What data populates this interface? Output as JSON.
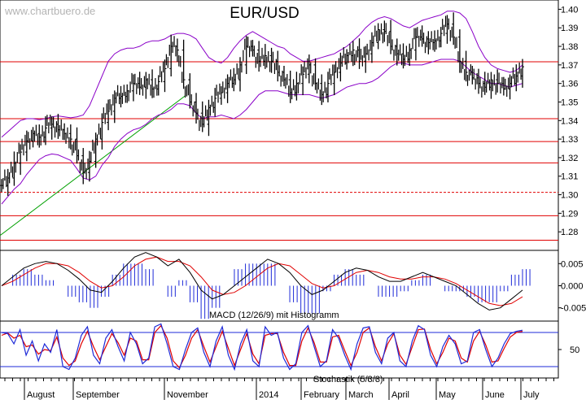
{
  "watermark": "www.chartbuero.de",
  "chart_data": [
    {
      "type": "candlestick",
      "title": "EUR/USD",
      "ylim": [
        1.27,
        1.405
      ],
      "y_ticks": [
        "1.28",
        "1.29",
        "1.30",
        "1.31",
        "1.32",
        "1.33",
        "1.34",
        "1.35",
        "1.36",
        "1.37",
        "1.38",
        "1.39",
        "1.40"
      ],
      "x_labels": [
        "August",
        "September",
        "November",
        "2014",
        "February",
        "March",
        "April",
        "May",
        "June",
        "July"
      ],
      "horizontal_lines": [
        {
          "y": 1.3717,
          "style": "solid"
        },
        {
          "y": 1.341,
          "style": "solid"
        },
        {
          "y": 1.3287,
          "style": "solid"
        },
        {
          "y": 1.3172,
          "style": "solid"
        },
        {
          "y": 1.3013,
          "style": "dashed"
        },
        {
          "y": 1.2887,
          "style": "solid"
        },
        {
          "y": 1.2755,
          "style": "solid"
        }
      ],
      "trendline": {
        "from": 1.278,
        "to": 1.3535,
        "color": "#00a000"
      },
      "close": [
        1.305,
        1.309,
        1.317,
        1.323,
        1.329,
        1.333,
        1.331,
        1.336,
        1.338,
        1.335,
        1.333,
        1.33,
        1.321,
        1.312,
        1.318,
        1.33,
        1.339,
        1.345,
        1.352,
        1.353,
        1.356,
        1.36,
        1.358,
        1.362,
        1.357,
        1.361,
        1.368,
        1.38,
        1.378,
        1.362,
        1.35,
        1.344,
        1.338,
        1.347,
        1.352,
        1.355,
        1.36,
        1.362,
        1.37,
        1.38,
        1.378,
        1.372,
        1.375,
        1.372,
        1.366,
        1.362,
        1.355,
        1.36,
        1.365,
        1.37,
        1.36,
        1.354,
        1.36,
        1.366,
        1.371,
        1.375,
        1.378,
        1.372,
        1.376,
        1.382,
        1.389,
        1.388,
        1.38,
        1.376,
        1.373,
        1.378,
        1.385,
        1.384,
        1.382,
        1.383,
        1.387,
        1.392,
        1.385,
        1.372,
        1.366,
        1.363,
        1.36,
        1.358,
        1.362,
        1.36,
        1.357,
        1.36,
        1.364,
        1.369
      ],
      "bollinger_upper": [
        1.331,
        1.334,
        1.337,
        1.34,
        1.341,
        1.341,
        1.3405,
        1.341,
        1.342,
        1.3425,
        1.342,
        1.3415,
        1.342,
        1.343,
        1.348,
        1.356,
        1.364,
        1.372,
        1.376,
        1.378,
        1.379,
        1.379,
        1.38,
        1.382,
        1.383,
        1.383,
        1.384,
        1.386,
        1.387,
        1.387,
        1.386,
        1.384,
        1.379,
        1.374,
        1.372,
        1.371,
        1.374,
        1.379,
        1.383,
        1.386,
        1.388,
        1.386,
        1.384,
        1.382,
        1.38,
        1.379,
        1.376,
        1.374,
        1.372,
        1.372,
        1.373,
        1.374,
        1.375,
        1.376,
        1.378,
        1.38,
        1.383,
        1.386,
        1.39,
        1.393,
        1.395,
        1.396,
        1.395,
        1.393,
        1.391,
        1.39,
        1.392,
        1.394,
        1.395,
        1.396,
        1.397,
        1.399,
        1.399,
        1.398,
        1.395,
        1.388,
        1.38,
        1.374,
        1.37,
        1.368,
        1.367,
        1.366,
        1.367,
        1.37
      ],
      "bollinger_middle": [
        1.313,
        1.317,
        1.32,
        1.323,
        1.326,
        1.328,
        1.33,
        1.331,
        1.332,
        1.332,
        1.331,
        1.33,
        1.328,
        1.326,
        1.328,
        1.333,
        1.34,
        1.346,
        1.351,
        1.354,
        1.356,
        1.357,
        1.358,
        1.36,
        1.362,
        1.363,
        1.364,
        1.366,
        1.368,
        1.368,
        1.367,
        1.364,
        1.36,
        1.358,
        1.357,
        1.357,
        1.358,
        1.36,
        1.363,
        1.366,
        1.369,
        1.37,
        1.37,
        1.369,
        1.368,
        1.367,
        1.365,
        1.364,
        1.363,
        1.363,
        1.363,
        1.363,
        1.364,
        1.365,
        1.367,
        1.369,
        1.371,
        1.373,
        1.375,
        1.377,
        1.379,
        1.381,
        1.382,
        1.382,
        1.381,
        1.38,
        1.381,
        1.382,
        1.383,
        1.384,
        1.385,
        1.386,
        1.386,
        1.385,
        1.382,
        1.377,
        1.372,
        1.368,
        1.365,
        1.364,
        1.363,
        1.362,
        1.363,
        1.365
      ],
      "bollinger_lower": [
        1.295,
        1.299,
        1.303,
        1.306,
        1.311,
        1.315,
        1.319,
        1.321,
        1.322,
        1.3215,
        1.32,
        1.3185,
        1.314,
        1.309,
        1.308,
        1.31,
        1.316,
        1.32,
        1.326,
        1.33,
        1.333,
        1.335,
        1.336,
        1.338,
        1.341,
        1.343,
        1.344,
        1.346,
        1.349,
        1.349,
        1.348,
        1.344,
        1.341,
        1.342,
        1.342,
        1.343,
        1.342,
        1.341,
        1.343,
        1.346,
        1.35,
        1.354,
        1.356,
        1.356,
        1.356,
        1.355,
        1.354,
        1.354,
        1.354,
        1.354,
        1.353,
        1.352,
        1.353,
        1.354,
        1.356,
        1.358,
        1.359,
        1.36,
        1.36,
        1.361,
        1.363,
        1.366,
        1.369,
        1.371,
        1.371,
        1.37,
        1.37,
        1.37,
        1.371,
        1.372,
        1.373,
        1.373,
        1.373,
        1.372,
        1.369,
        1.366,
        1.364,
        1.362,
        1.36,
        1.36,
        1.359,
        1.358,
        1.359,
        1.36
      ]
    },
    {
      "type": "line",
      "title": "MACD (12/26/9) mit Histogramm",
      "ylim": [
        -0.008,
        0.008
      ],
      "y_ticks": [
        "0.005",
        "0.000",
        "-0.005"
      ],
      "series": [],
      "macd": [
        0.0,
        0.002,
        0.004,
        0.005,
        0.0055,
        0.005,
        0.0035,
        0.0015,
        -0.001,
        -0.0015,
        0.001,
        0.004,
        0.0065,
        0.0075,
        0.0065,
        0.0045,
        0.006,
        0.003,
        -0.001,
        -0.003,
        -0.002,
        0.0,
        0.002,
        0.004,
        0.006,
        0.005,
        0.003,
        0.0,
        -0.002,
        -0.001,
        0.001,
        0.003,
        0.004,
        0.0035,
        0.002,
        0.001,
        0.001,
        0.002,
        0.003,
        0.002,
        0.001,
        0.0,
        -0.002,
        -0.004,
        -0.0055,
        -0.005,
        -0.003,
        -0.001
      ],
      "signal": [
        0.0,
        0.001,
        0.0025,
        0.004,
        0.005,
        0.005,
        0.0045,
        0.003,
        0.001,
        -0.0005,
        0.0,
        0.002,
        0.0045,
        0.006,
        0.0065,
        0.0055,
        0.0055,
        0.0045,
        0.002,
        -0.001,
        -0.002,
        -0.0015,
        0.0,
        0.002,
        0.004,
        0.005,
        0.0045,
        0.0025,
        0.0005,
        -0.0005,
        0.0,
        0.0015,
        0.003,
        0.0035,
        0.003,
        0.002,
        0.0015,
        0.0015,
        0.002,
        0.002,
        0.0015,
        0.0005,
        -0.001,
        -0.0025,
        -0.004,
        -0.0045,
        -0.004,
        -0.0025
      ]
    },
    {
      "type": "line",
      "title": "Stochastik (5/3/3)",
      "ylim": [
        0,
        100
      ],
      "y_ticks": [
        "50"
      ],
      "levels": [
        80,
        20
      ],
      "series": [],
      "k": [
        80,
        78,
        60,
        85,
        40,
        65,
        30,
        60,
        45,
        85,
        20,
        15,
        35,
        75,
        90,
        40,
        25,
        70,
        85,
        55,
        30,
        80,
        60,
        25,
        35,
        90,
        95,
        60,
        20,
        15,
        50,
        80,
        88,
        45,
        20,
        65,
        90,
        40,
        15,
        60,
        85,
        30,
        20,
        90,
        75,
        80,
        35,
        15,
        25,
        80,
        92,
        55,
        20,
        30,
        85,
        70,
        40,
        15,
        60,
        88,
        90,
        45,
        25,
        70,
        80,
        30,
        20,
        65,
        92,
        85,
        40,
        20,
        55,
        75,
        60,
        25,
        30,
        80,
        85,
        50,
        20,
        35,
        60,
        78,
        82,
        84
      ],
      "d": [
        75,
        79,
        70,
        75,
        55,
        58,
        42,
        50,
        48,
        72,
        35,
        22,
        30,
        60,
        82,
        55,
        32,
        55,
        78,
        62,
        40,
        70,
        65,
        32,
        32,
        80,
        92,
        70,
        30,
        18,
        40,
        70,
        85,
        55,
        28,
        55,
        82,
        52,
        22,
        50,
        78,
        42,
        25,
        75,
        78,
        78,
        45,
        22,
        22,
        65,
        88,
        62,
        28,
        28,
        72,
        75,
        48,
        22,
        45,
        80,
        88,
        55,
        30,
        60,
        78,
        40,
        24,
        55,
        85,
        86,
        50,
        25,
        45,
        70,
        65,
        35,
        28,
        65,
        82,
        58,
        28,
        30,
        52,
        72,
        80,
        82
      ]
    }
  ]
}
